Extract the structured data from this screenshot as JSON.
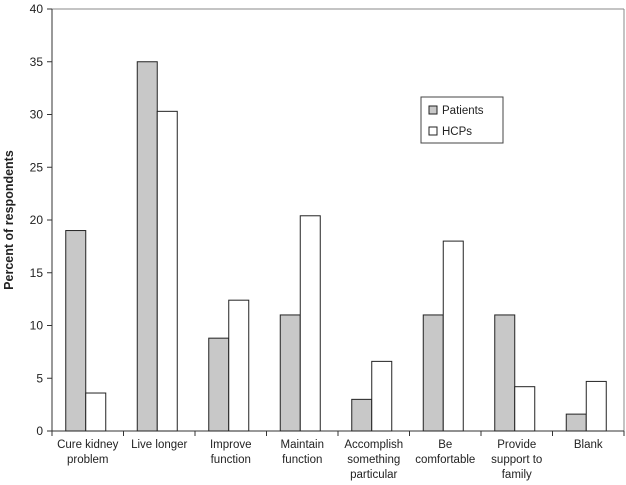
{
  "chart_data": {
    "type": "bar",
    "title": "",
    "xlabel": "",
    "ylabel": "Percent of respondents",
    "ylim": [
      0,
      40
    ],
    "yticks": [
      0,
      5,
      10,
      15,
      20,
      25,
      30,
      35,
      40
    ],
    "grid": false,
    "legend_position": "top-right",
    "categories": [
      [
        "Cure kidney",
        "problem"
      ],
      [
        "Live longer"
      ],
      [
        "Improve",
        "function"
      ],
      [
        "Maintain",
        "function"
      ],
      [
        "Accomplish",
        "something",
        "particular"
      ],
      [
        "Be",
        "comfortable"
      ],
      [
        "Provide",
        "support to",
        "family"
      ],
      [
        "Blank"
      ]
    ],
    "series": [
      {
        "name": "Patients",
        "color": "#c8c8c8",
        "values": [
          19.0,
          35.0,
          8.8,
          11.0,
          3.0,
          11.0,
          11.0,
          1.6
        ]
      },
      {
        "name": "HCPs",
        "color": "#ffffff",
        "values": [
          3.6,
          30.3,
          12.4,
          20.4,
          6.6,
          18.0,
          4.2,
          4.7
        ]
      }
    ]
  }
}
